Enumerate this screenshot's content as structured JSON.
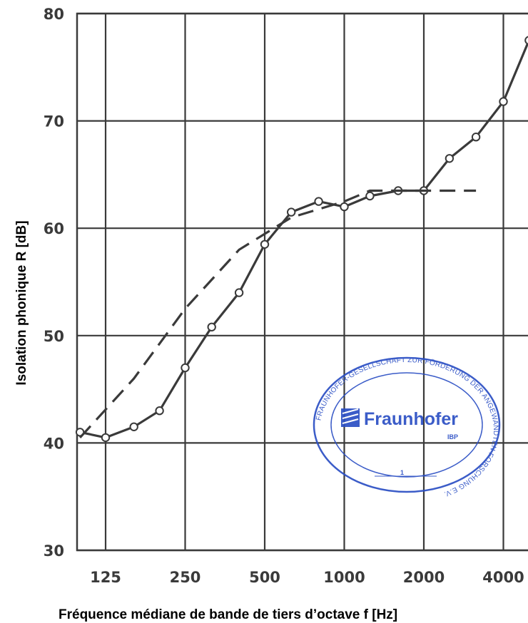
{
  "chart_data": {
    "type": "line",
    "xlabel": "Fréquence médiane de bande de tiers d’octave f [Hz]",
    "ylabel": "Isolation phonique R [dB]",
    "ylim": [
      30,
      80
    ],
    "x_scale": "log",
    "y_ticks": [
      "30",
      "40",
      "50",
      "60",
      "70",
      "80"
    ],
    "x_tick_labels": [
      "125",
      "250",
      "500",
      "1000",
      "2000",
      "4000"
    ],
    "x_tick_values": [
      125,
      250,
      500,
      1000,
      2000,
      4000
    ],
    "grid": true,
    "legend": "none",
    "series": [
      {
        "style": "solid-with-circle-markers",
        "color": "#3a3a3a",
        "x": [
          100,
          125,
          160,
          200,
          250,
          315,
          400,
          500,
          630,
          800,
          1000,
          1250,
          1600,
          2000,
          2500,
          3150,
          4000,
          5000
        ],
        "y": [
          41.0,
          40.5,
          41.5,
          43.0,
          47.0,
          50.8,
          54.0,
          58.5,
          61.5,
          62.5,
          62.0,
          63.0,
          63.5,
          63.5,
          66.5,
          68.5,
          71.8,
          77.5
        ]
      },
      {
        "style": "dashed",
        "color": "#3a3a3a",
        "x": [
          100,
          160,
          250,
          400,
          630,
          1000,
          1250,
          1600,
          2000,
          3150
        ],
        "y": [
          40.5,
          46.0,
          52.5,
          58.0,
          61.0,
          62.5,
          63.5,
          63.5,
          63.5,
          63.5
        ]
      }
    ]
  },
  "stamp": {
    "arc_text": "FRAUNHOFER-GESELLSCHAFT ZUR FÖRDERUNG DER ANGEWANDTEN FORSCHUNG E.V.",
    "brand": "Fraunhofer",
    "unit": "IBP",
    "number": "1",
    "color": "#2b4fc4"
  }
}
